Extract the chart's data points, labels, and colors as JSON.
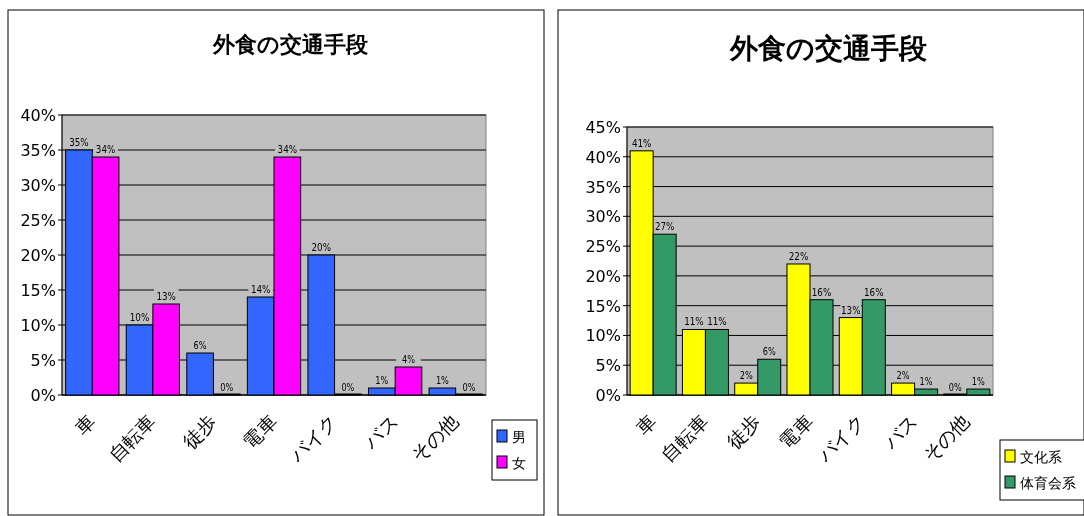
{
  "chart_data": [
    {
      "type": "bar",
      "title": "外食の交通手段",
      "categories": [
        "車",
        "自転車",
        "徒歩",
        "電車",
        "バイク",
        "バス",
        "その他"
      ],
      "ylim": [
        0,
        40
      ],
      "yticks": [
        {
          "value": 0,
          "label": "0%"
        },
        {
          "value": 5,
          "label": "5%"
        },
        {
          "value": 10,
          "label": "10%"
        },
        {
          "value": 15,
          "label": "15%"
        },
        {
          "value": 20,
          "label": "20%"
        },
        {
          "value": 25,
          "label": "25%"
        },
        {
          "value": 30,
          "label": "30%"
        },
        {
          "value": 35,
          "label": "35%"
        },
        {
          "value": 40,
          "label": "40%"
        }
      ],
      "grid": "y",
      "legend": "bottom right",
      "series": [
        {
          "name": "男",
          "color": "#3366ff",
          "values": [
            35,
            10,
            6,
            14,
            20,
            1,
            1
          ],
          "value_labels": [
            "35%",
            "10%",
            "6%",
            "14%",
            "20%",
            "1%",
            "1%"
          ]
        },
        {
          "name": "女",
          "color": "#ff00ff",
          "values": [
            34,
            13,
            0,
            34,
            0,
            4,
            0
          ],
          "value_labels": [
            "34%",
            "13%",
            "0%",
            "34%",
            "0%",
            "4%",
            "0%"
          ]
        }
      ]
    },
    {
      "type": "bar",
      "title": "外食の交通手段",
      "categories": [
        "車",
        "自転車",
        "徒歩",
        "電車",
        "バイク",
        "バス",
        "その他"
      ],
      "ylim": [
        0,
        45
      ],
      "yticks": [
        {
          "value": 0,
          "label": "0%"
        },
        {
          "value": 5,
          "label": "5%"
        },
        {
          "value": 10,
          "label": "10%"
        },
        {
          "value": 15,
          "label": "15%"
        },
        {
          "value": 20,
          "label": "20%"
        },
        {
          "value": 25,
          "label": "25%"
        },
        {
          "value": 30,
          "label": "30%"
        },
        {
          "value": 35,
          "label": "35%"
        },
        {
          "value": 40,
          "label": "40%"
        },
        {
          "value": 45,
          "label": "45%"
        }
      ],
      "grid": "y",
      "legend": "bottom right",
      "series": [
        {
          "name": "文化系",
          "color": "#ffff00",
          "values": [
            41,
            11,
            2,
            22,
            13,
            2,
            0
          ],
          "value_labels": [
            "41%",
            "11%",
            "2%",
            "22%",
            "13%",
            "2%",
            "0%"
          ]
        },
        {
          "name": "体育会系",
          "color": "#339966",
          "values": [
            27,
            11,
            6,
            16,
            16,
            1,
            1
          ],
          "value_labels": [
            "27%",
            "11%",
            "6%",
            "16%",
            "16%",
            "1%",
            "1%"
          ]
        }
      ]
    }
  ]
}
